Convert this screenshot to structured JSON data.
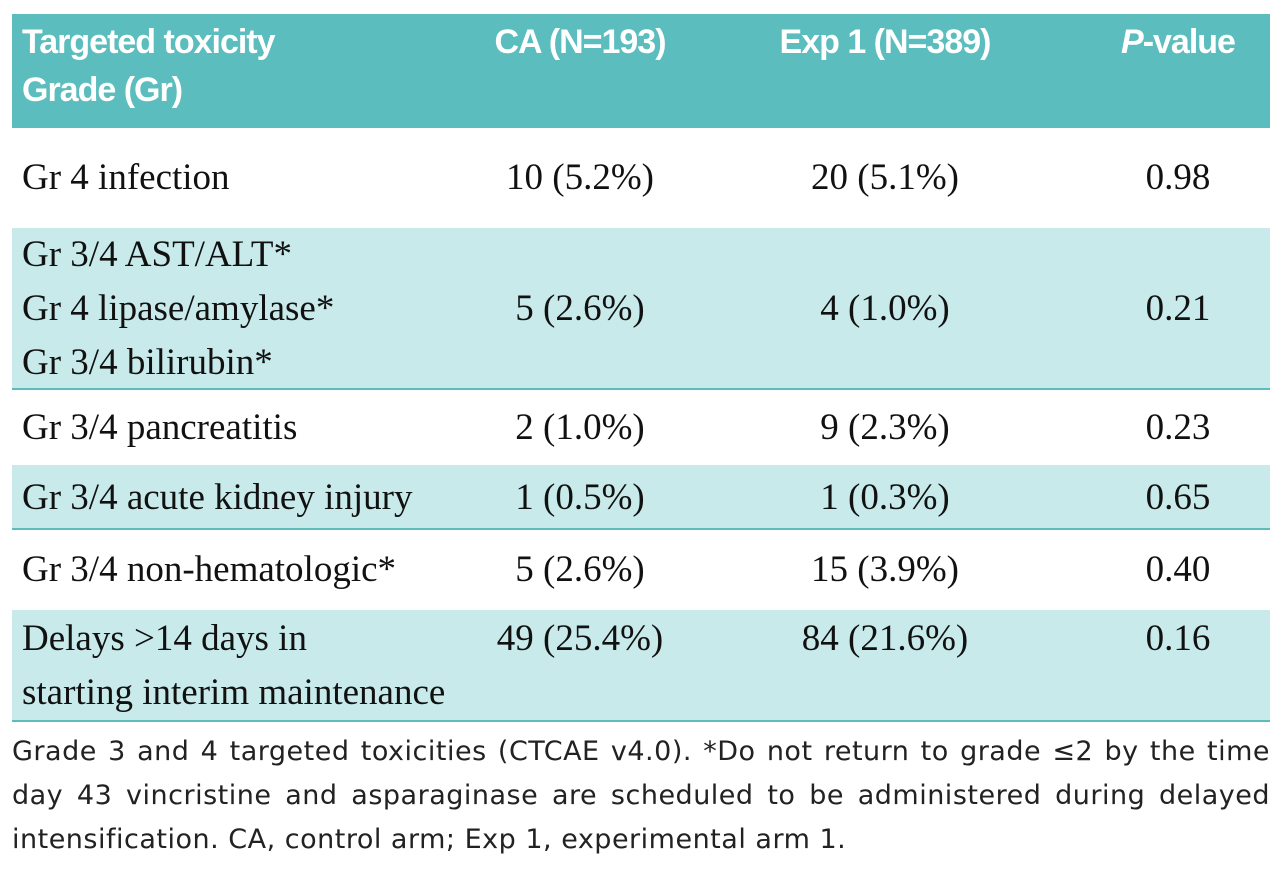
{
  "table": {
    "header": [
      [
        "Targeted toxicity",
        "Grade (Gr)"
      ],
      "CA (N=193)",
      "Exp 1 (N=389)",
      {
        "italic": "P",
        "rest": "-value"
      }
    ],
    "rows": [
      [
        [
          "Gr 4 infection"
        ],
        "10 (5.2%)",
        "20 (5.1%)",
        "0.98"
      ],
      [
        [
          "Gr 3/4 AST/ALT*",
          "Gr 4 lipase/amylase*",
          "Gr 3/4 bilirubin*"
        ],
        "5 (2.6%)",
        "4 (1.0%)",
        "0.21"
      ],
      [
        [
          "Gr 3/4 pancreatitis"
        ],
        "2 (1.0%)",
        "9 (2.3%)",
        "0.23"
      ],
      [
        [
          "Gr 3/4 acute kidney injury"
        ],
        "1 (0.5%)",
        "1 (0.3%)",
        "0.65"
      ],
      [
        [
          "Gr 3/4 non-hematologic*"
        ],
        "5 (2.6%)",
        "15 (3.9%)",
        "0.40"
      ],
      [
        [
          "Delays >14 days in",
          "starting interim maintenance"
        ],
        "49 (25.4%)",
        "84 (21.6%)",
        "0.16"
      ]
    ]
  },
  "footnote": "Grade 3 and 4 targeted toxicities (CTCAE v4.0). *Do not return to grade ≤2 by the time day 43 vincristine and asparaginase are scheduled to be administered during delayed intensification. CA, control arm; Exp 1, experimental arm 1."
}
